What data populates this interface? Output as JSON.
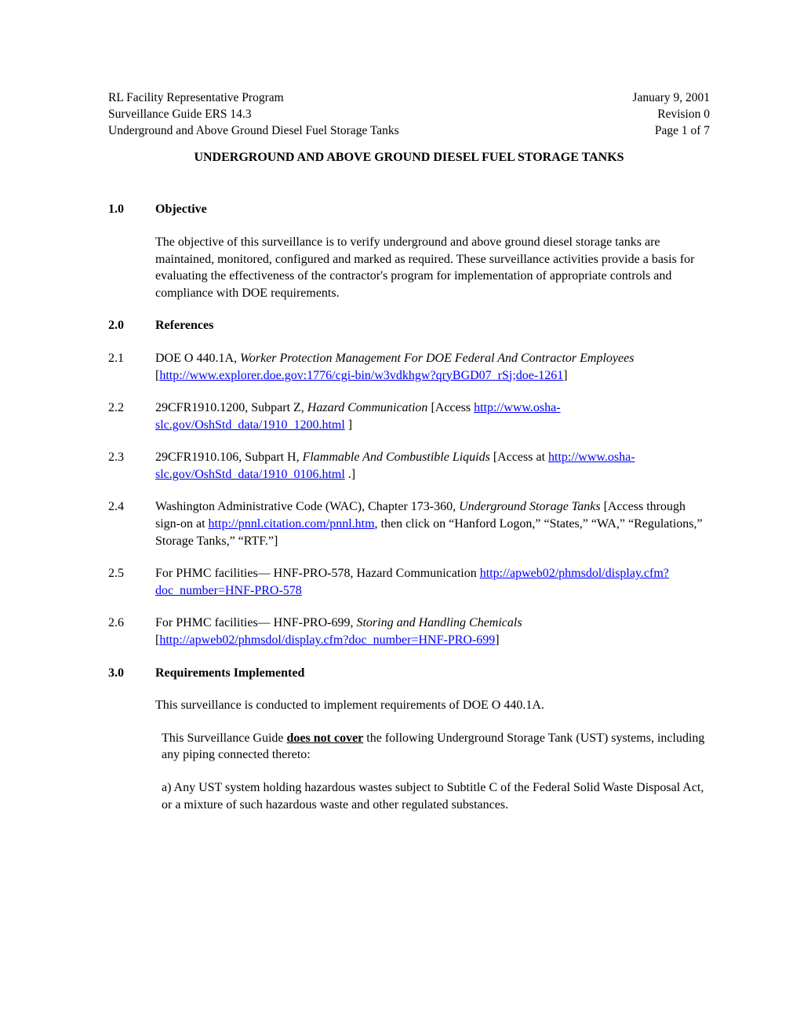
{
  "header": {
    "left1": "RL Facility Representative Program",
    "right1": "January 9, 2001",
    "left2": "Surveillance Guide ERS 14.3",
    "right2": "Revision 0",
    "left3": "Underground and Above Ground Diesel Fuel Storage Tanks",
    "right3": "Page 1 of 7"
  },
  "title": "UNDERGROUND AND ABOVE GROUND DIESEL FUEL STORAGE TANKS",
  "s1": {
    "num": "1.0",
    "heading": "Objective",
    "body": "The objective of this surveillance is to verify underground and above ground diesel storage tanks are maintained, monitored, configured and marked as required.  These surveillance activities provide a basis for evaluating the effectiveness of the contractor's program for implementation of appropriate controls and compliance with DOE requirements."
  },
  "s2": {
    "num": "2.0",
    "heading": "References"
  },
  "r21": {
    "num": "2.1",
    "pre": "DOE O 440.1A, ",
    "ital": "Worker Protection Management For DOE Federal And Contractor Employees",
    "open": "[",
    "link": "http://www.explorer.doe.gov:1776/cgi-bin/w3vdkhgw?qryBGD07_rSj;doe-1261",
    "close": "]"
  },
  "r22": {
    "num": "2.2",
    "pre": "29CFR1910.1200, Subpart Z, ",
    "ital": "Hazard Communication",
    "mid": " [Access ",
    "link1": "http://www.osha-",
    "link2": "slc.gov/OshStd_data/1910_1200.html",
    "close": " ]"
  },
  "r23": {
    "num": "2.3",
    "pre": "29CFR1910.106, Subpart H, ",
    "ital": "Flammable And Combustible Liquids",
    "mid": " [Access at ",
    "link": "http://www.osha-slc.gov/OshStd_data/1910_0106.html",
    "close": " .]"
  },
  "r24": {
    "num": "2.4",
    "pre": "Washington Administrative Code (WAC), Chapter 173-360, ",
    "ital": "Underground Storage Tanks",
    "mid": " [Access through sign-on at ",
    "link": "http://pnnl.citation.com/pnnl.htm",
    "post": ", then click on “Hanford Logon,” “States,” “WA,” “Regulations,” Storage Tanks,” “RTF.”]"
  },
  "r25": {
    "num": "2.5",
    "pre": "For PHMC facilities— HNF-PRO-578, Hazard Communication ",
    "link": "http://apweb02/phmsdol/display.cfm?doc_number=HNF-PRO-578"
  },
  "r26": {
    "num": "2.6",
    "pre": "For PHMC facilities— HNF-PRO-699, ",
    "ital": "Storing and Handling Chemicals",
    "open": " [",
    "link": "http://apweb02/phmsdol/display.cfm?doc_number=HNF-PRO-699",
    "close": "]"
  },
  "s3": {
    "num": "3.0",
    "heading": "Requirements Implemented",
    "p1": "This surveillance is conducted to implement requirements of DOE O 440.1A.",
    "p2a": "This Surveillance Guide ",
    "p2b": "does not cover",
    "p2c": " the following Underground Storage Tank (UST) systems, including any piping connected thereto:",
    "p3": "a) Any UST system holding hazardous wastes subject to Subtitle C of the Federal Solid Waste Disposal Act, or a mixture of such hazardous waste and other regulated substances."
  }
}
